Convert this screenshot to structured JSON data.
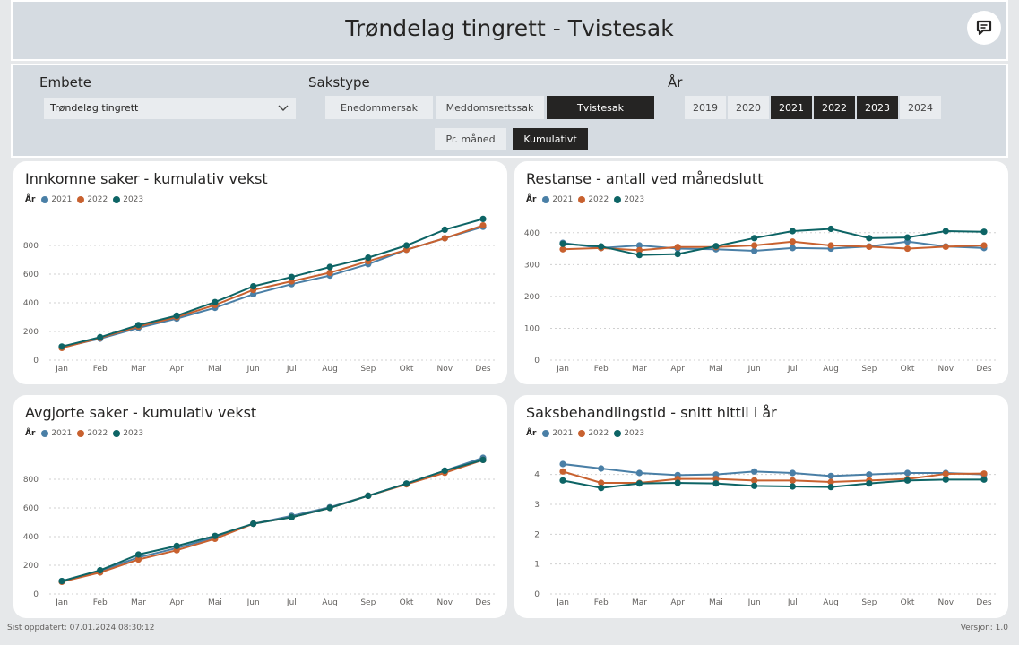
{
  "header": {
    "title": "Trøndelag tingrett - Tvistesak",
    "chat_icon": "chat-icon"
  },
  "filters": {
    "embete": {
      "label": "Embete",
      "value": "Trøndelag tingrett"
    },
    "sakstype": {
      "label": "Sakstype",
      "options": [
        {
          "label": "Enedommersak",
          "selected": false
        },
        {
          "label": "Meddomsrettssak",
          "selected": false
        },
        {
          "label": "Tvistesak",
          "selected": true
        }
      ]
    },
    "aar": {
      "label": "År",
      "options": [
        {
          "label": "2019",
          "selected": false
        },
        {
          "label": "2020",
          "selected": false
        },
        {
          "label": "2021",
          "selected": true
        },
        {
          "label": "2022",
          "selected": true
        },
        {
          "label": "2023",
          "selected": true
        },
        {
          "label": "2024",
          "selected": false
        }
      ]
    },
    "mode": [
      {
        "label": "Pr. måned",
        "selected": false
      },
      {
        "label": "Kumulativt",
        "selected": true
      }
    ]
  },
  "colors": {
    "2021": "#4a7fa6",
    "2022": "#c8612f",
    "2023": "#0d6465",
    "selected": "#252423",
    "panel": "#d5dbe1"
  },
  "legend_title": "År",
  "chart_data": [
    {
      "type": "line",
      "title": "Innkomne saker - kumulativ vekst",
      "categories": [
        "Jan",
        "Feb",
        "Mar",
        "Apr",
        "Mai",
        "Jun",
        "Jul",
        "Aug",
        "Sep",
        "Okt",
        "Nov",
        "Des"
      ],
      "yticks": [
        0,
        200,
        400,
        600,
        800
      ],
      "ylim": [
        0,
        1000
      ],
      "grid": true,
      "series": [
        {
          "name": "2021",
          "values": [
            90,
            150,
            225,
            290,
            365,
            460,
            530,
            590,
            670,
            770,
            850,
            930
          ]
        },
        {
          "name": "2022",
          "values": [
            85,
            155,
            235,
            300,
            385,
            490,
            550,
            610,
            690,
            770,
            850,
            940
          ]
        },
        {
          "name": "2023",
          "values": [
            95,
            160,
            245,
            310,
            405,
            515,
            580,
            650,
            715,
            800,
            910,
            985
          ]
        }
      ]
    },
    {
      "type": "line",
      "title": "Restanse - antall ved månedslutt",
      "categories": [
        "Jan",
        "Feb",
        "Mar",
        "Apr",
        "Mai",
        "Jun",
        "Jul",
        "Aug",
        "Sep",
        "Okt",
        "Nov",
        "Des"
      ],
      "yticks": [
        0,
        100,
        200,
        300,
        400
      ],
      "ylim": [
        0,
        450
      ],
      "grid": true,
      "series": [
        {
          "name": "2021",
          "values": [
            368,
            352,
            360,
            350,
            348,
            343,
            352,
            350,
            357,
            372,
            357,
            352
          ]
        },
        {
          "name": "2022",
          "values": [
            348,
            352,
            345,
            355,
            355,
            360,
            372,
            360,
            356,
            350,
            356,
            360
          ]
        },
        {
          "name": "2023",
          "values": [
            365,
            357,
            330,
            333,
            358,
            383,
            405,
            412,
            383,
            385,
            405,
            403
          ]
        }
      ]
    },
    {
      "type": "line",
      "title": "Avgjorte saker - kumulativ vekst",
      "categories": [
        "Jan",
        "Feb",
        "Mar",
        "Apr",
        "Mai",
        "Jun",
        "Jul",
        "Aug",
        "Sep",
        "Okt",
        "Nov",
        "Des"
      ],
      "yticks": [
        0,
        200,
        400,
        600,
        800
      ],
      "ylim": [
        0,
        1000
      ],
      "grid": true,
      "series": [
        {
          "name": "2021",
          "values": [
            90,
            160,
            255,
            320,
            395,
            490,
            545,
            605,
            685,
            770,
            860,
            950
          ]
        },
        {
          "name": "2022",
          "values": [
            85,
            150,
            240,
            305,
            385,
            490,
            535,
            600,
            685,
            765,
            845,
            935
          ]
        },
        {
          "name": "2023",
          "values": [
            90,
            165,
            275,
            335,
            405,
            490,
            535,
            600,
            685,
            770,
            860,
            935
          ]
        }
      ]
    },
    {
      "type": "line",
      "title": "Saksbehandlingstid - snitt hittil i år",
      "categories": [
        "Jan",
        "Feb",
        "Mar",
        "Apr",
        "Mai",
        "Jun",
        "Jul",
        "Aug",
        "Sep",
        "Okt",
        "Nov",
        "Des"
      ],
      "yticks": [
        0,
        1,
        2,
        3,
        4
      ],
      "ylim": [
        0,
        4.8
      ],
      "grid": true,
      "series": [
        {
          "name": "2021",
          "values": [
            4.35,
            4.2,
            4.05,
            3.98,
            4.0,
            4.1,
            4.05,
            3.95,
            4.0,
            4.05,
            4.05,
            4.0
          ]
        },
        {
          "name": "2022",
          "values": [
            4.1,
            3.72,
            3.72,
            3.85,
            3.85,
            3.8,
            3.8,
            3.75,
            3.8,
            3.85,
            4.02,
            4.03
          ]
        },
        {
          "name": "2023",
          "values": [
            3.8,
            3.55,
            3.7,
            3.72,
            3.7,
            3.62,
            3.6,
            3.58,
            3.7,
            3.8,
            3.83,
            3.83
          ]
        }
      ]
    }
  ],
  "footer": {
    "updated": "Sist oppdatert: 07.01.2024 08:30:12",
    "version": "Versjon: 1.0"
  }
}
